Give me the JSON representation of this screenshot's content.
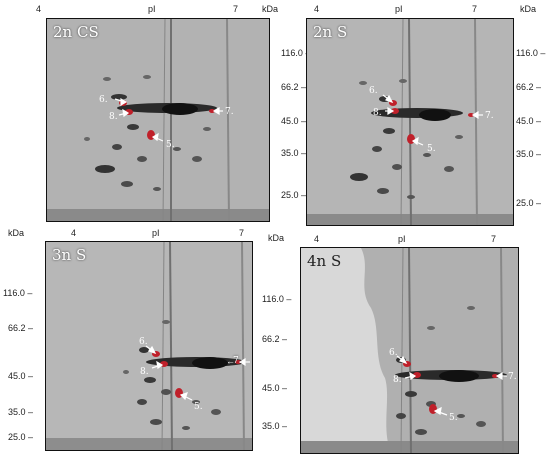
{
  "axis": {
    "pi_label": "pI",
    "kda_label": "kDa",
    "pi_low": "4",
    "pi_high": "7"
  },
  "panels": [
    {
      "title": "2n CS",
      "markers": [
        "116.0",
        "66.2",
        "45.0",
        "35.0",
        "25.0"
      ],
      "spots": [
        "6.",
        "8.",
        "5.",
        "7."
      ]
    },
    {
      "title": "2n S",
      "markers": [
        "116.0",
        "66.2",
        "45.0",
        "35.0",
        "25.0"
      ],
      "spots": [
        "6.",
        "8.",
        "5.",
        "7."
      ]
    },
    {
      "title": "3n S",
      "markers": [
        "116.0",
        "66.2",
        "45.0",
        "35.0",
        "25.0"
      ],
      "spots": [
        "6.",
        "8.",
        "5.",
        "7."
      ]
    },
    {
      "title": "4n S",
      "markers": [
        "116.0",
        "66.2",
        "45.0",
        "35.0"
      ],
      "spots": [
        "6.",
        "8.",
        "5.",
        "7."
      ]
    }
  ],
  "colors": {
    "spot_highlight": "#c0202a",
    "arrow": "#ffffff",
    "gel_background": "#b5b5b5"
  }
}
